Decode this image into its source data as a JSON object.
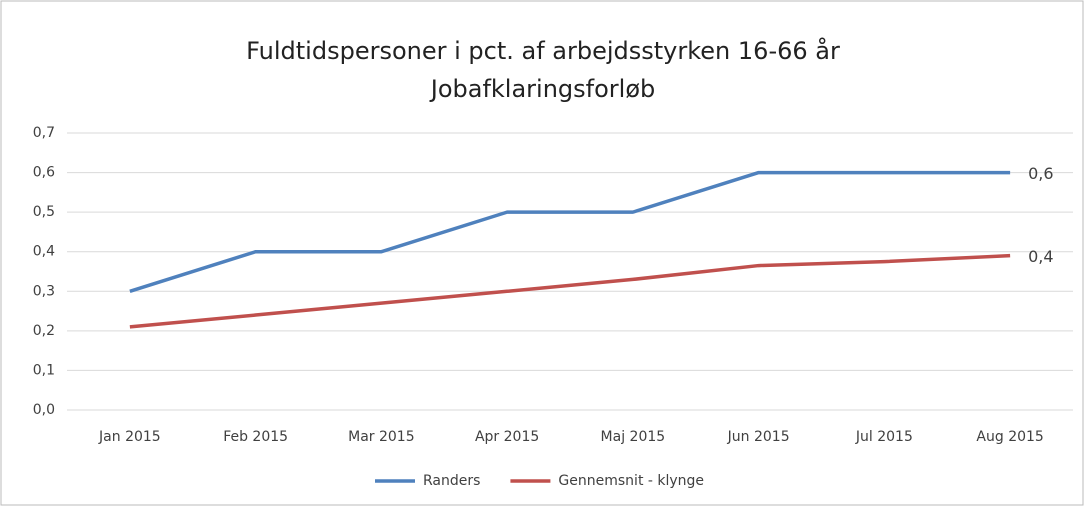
{
  "chart_data": {
    "type": "line",
    "title": "Fuldtidspersoner i pct. af arbejdsstyrken 16-66 år",
    "subtitle": "Jobafklaringsforløb",
    "categories": [
      "Jan 2015",
      "Feb 2015",
      "Mar 2015",
      "Apr 2015",
      "Maj 2015",
      "Jun 2015",
      "Jul 2015",
      "Aug 2015"
    ],
    "series": [
      {
        "name": "Randers",
        "color": "#4f81bd",
        "values": [
          0.3,
          0.4,
          0.4,
          0.5,
          0.5,
          0.6,
          0.6,
          0.6
        ],
        "value_labels": [
          null,
          null,
          null,
          null,
          null,
          null,
          null,
          "0,6"
        ]
      },
      {
        "name": "Gennemsnit - klynge",
        "color": "#c0504d",
        "values": [
          0.21,
          0.24,
          0.27,
          0.3,
          0.33,
          0.365,
          0.375,
          0.39
        ],
        "value_labels": [
          null,
          null,
          null,
          null,
          null,
          null,
          null,
          "0,4"
        ]
      }
    ],
    "ylim": [
      0,
      0.7
    ],
    "yticks": [
      {
        "value": 0,
        "label": "0,0"
      },
      {
        "value": 0.1,
        "label": "0,1"
      },
      {
        "value": 0.2,
        "label": "0,2"
      },
      {
        "value": 0.3,
        "label": "0,3"
      },
      {
        "value": 0.4,
        "label": "0,4"
      },
      {
        "value": 0.5,
        "label": "0,5"
      },
      {
        "value": 0.6,
        "label": "0,6"
      },
      {
        "value": 0.7,
        "label": "0,7"
      }
    ],
    "grid": true,
    "legend": "bottom"
  }
}
